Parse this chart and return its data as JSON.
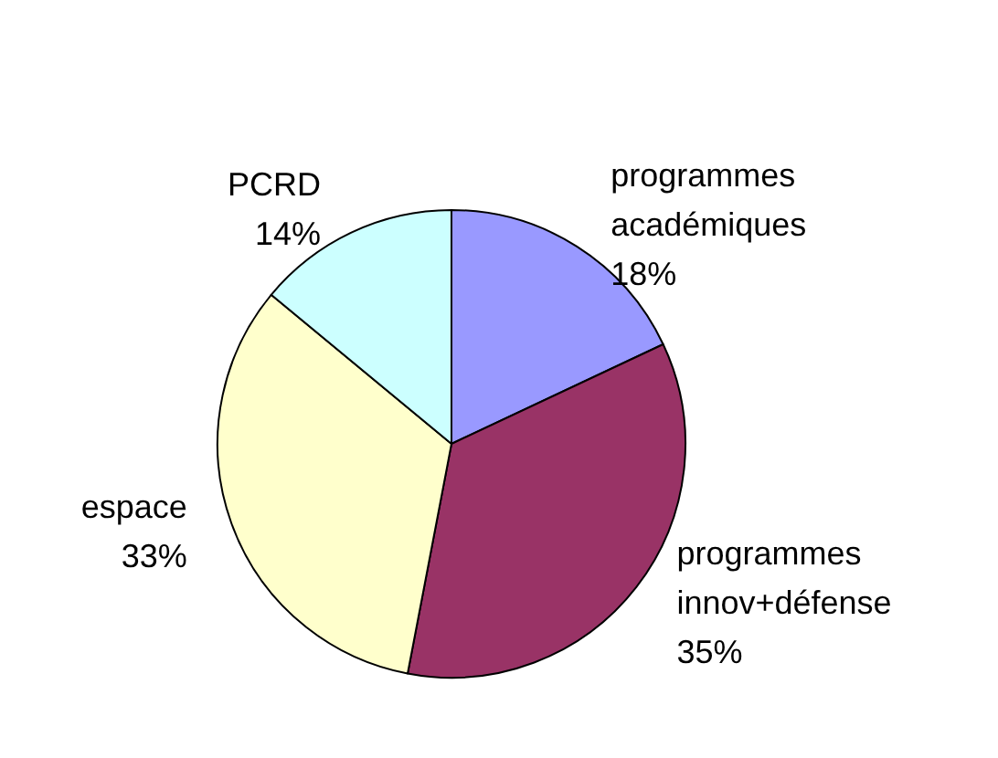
{
  "chart_data": {
    "type": "pie",
    "categories": [
      "programmes académiques",
      "programmes innov+défense",
      "espace",
      "PCRD"
    ],
    "values": [
      18,
      35,
      33,
      14
    ],
    "colors": [
      "#9999ff",
      "#993366",
      "#ffffcc",
      "#ccffff"
    ],
    "value_labels": [
      "18%",
      "35%",
      "33%",
      "14%"
    ],
    "legend": false
  }
}
